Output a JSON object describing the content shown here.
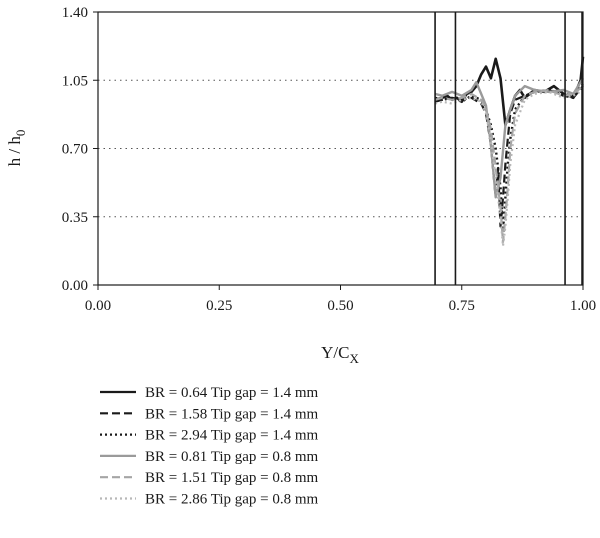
{
  "chart_data": {
    "type": "line",
    "xlabel": "Y/C",
    "xlabel_sub": "X",
    "ylabel": "h / h",
    "ylabel_sub": "0",
    "xlim": [
      0,
      1
    ],
    "ylim": [
      0,
      1.4
    ],
    "xticks": [
      "0.00",
      "0.25",
      "0.50",
      "0.75",
      "1.00"
    ],
    "yticks": [
      "0.00",
      "0.35",
      "0.70",
      "1.05",
      "1.40"
    ],
    "grid": "dotted horizontal lines at y ticks",
    "vertical_lines_x": [
      0.695,
      0.737,
      0.963,
      0.998
    ],
    "legend_position": "below plot",
    "series": [
      {
        "name": "BR = 0.64 Tip gap = 1.4 mm",
        "color": "#1a1a1a",
        "dash": "solid",
        "width": 2.6,
        "x": [
          0.695,
          0.71,
          0.72,
          0.73,
          0.74,
          0.75,
          0.76,
          0.77,
          0.78,
          0.79,
          0.8,
          0.81,
          0.82,
          0.83,
          0.84,
          0.85,
          0.86,
          0.87,
          0.88,
          0.9,
          0.92,
          0.94,
          0.96,
          0.98,
          0.995,
          1.0
        ],
        "y": [
          0.95,
          0.96,
          0.97,
          0.95,
          0.96,
          0.94,
          0.98,
          0.99,
          1.02,
          1.08,
          1.12,
          1.06,
          1.16,
          1.06,
          0.82,
          0.9,
          0.97,
          1.0,
          0.96,
          1.0,
          0.99,
          1.02,
          0.98,
          0.96,
          1.05,
          1.17
        ]
      },
      {
        "name": "BR = 1.58 Tip gap = 1.4 mm",
        "color": "#1a1a1a",
        "dash": "8,4",
        "width": 2.2,
        "x": [
          0.695,
          0.71,
          0.73,
          0.75,
          0.77,
          0.79,
          0.8,
          0.81,
          0.815,
          0.82,
          0.825,
          0.83,
          0.835,
          0.84,
          0.845,
          0.85,
          0.86,
          0.88,
          0.9,
          0.93,
          0.96,
          0.98,
          1.0
        ],
        "y": [
          0.94,
          0.95,
          0.96,
          0.95,
          0.96,
          0.93,
          0.88,
          0.72,
          0.58,
          0.45,
          0.6,
          0.3,
          0.45,
          0.62,
          0.75,
          0.88,
          0.95,
          0.97,
          0.99,
          1.0,
          0.97,
          0.96,
          1.02
        ]
      },
      {
        "name": "BR = 2.94 Tip gap = 1.4 mm",
        "color": "#1a1a1a",
        "dash": "2,3",
        "width": 2.4,
        "x": [
          0.695,
          0.71,
          0.73,
          0.75,
          0.77,
          0.79,
          0.8,
          0.81,
          0.82,
          0.83,
          0.835,
          0.84,
          0.845,
          0.85,
          0.86,
          0.88,
          0.9,
          0.93,
          0.96,
          0.98,
          1.0
        ],
        "y": [
          0.96,
          0.95,
          0.96,
          0.94,
          0.97,
          0.95,
          0.9,
          0.82,
          0.7,
          0.5,
          0.28,
          0.45,
          0.62,
          0.75,
          0.9,
          0.97,
          0.99,
          1.0,
          0.98,
          0.97,
          1.03
        ]
      },
      {
        "name": "BR = 0.81 Tip gap = 0.8 mm",
        "color": "#9a9a9a",
        "dash": "solid",
        "width": 2.4,
        "x": [
          0.695,
          0.71,
          0.73,
          0.75,
          0.77,
          0.78,
          0.79,
          0.8,
          0.81,
          0.82,
          0.83,
          0.84,
          0.85,
          0.86,
          0.88,
          0.9,
          0.93,
          0.96,
          0.98,
          1.0
        ],
        "y": [
          0.98,
          0.97,
          0.99,
          0.97,
          1.0,
          1.04,
          0.98,
          0.92,
          0.72,
          0.45,
          0.55,
          0.82,
          0.9,
          0.97,
          1.02,
          1.0,
          0.99,
          1.0,
          0.98,
          1.06
        ]
      },
      {
        "name": "BR = 1.51 Tip gap = 0.8 mm",
        "color": "#a5a5a5",
        "dash": "8,4",
        "width": 2.2,
        "x": [
          0.695,
          0.71,
          0.73,
          0.75,
          0.77,
          0.79,
          0.8,
          0.81,
          0.82,
          0.83,
          0.835,
          0.84,
          0.845,
          0.85,
          0.86,
          0.88,
          0.9,
          0.93,
          0.96,
          0.98,
          1.0
        ],
        "y": [
          0.95,
          0.96,
          0.95,
          0.96,
          0.98,
          0.95,
          0.9,
          0.8,
          0.6,
          0.4,
          0.22,
          0.35,
          0.5,
          0.7,
          0.88,
          0.97,
          0.99,
          1.0,
          0.97,
          0.98,
          1.02
        ]
      },
      {
        "name": "BR = 2.86 Tip gap = 0.8 mm",
        "color": "#b8b8b8",
        "dash": "2,3",
        "width": 2.2,
        "x": [
          0.695,
          0.71,
          0.73,
          0.75,
          0.77,
          0.79,
          0.8,
          0.81,
          0.82,
          0.83,
          0.835,
          0.84,
          0.845,
          0.85,
          0.86,
          0.88,
          0.9,
          0.93,
          0.96,
          0.98,
          1.0
        ],
        "y": [
          0.93,
          0.94,
          0.93,
          0.95,
          0.96,
          0.94,
          0.88,
          0.74,
          0.55,
          0.35,
          0.2,
          0.3,
          0.45,
          0.62,
          0.82,
          0.95,
          0.98,
          0.99,
          0.96,
          0.97,
          1.0
        ]
      }
    ]
  }
}
